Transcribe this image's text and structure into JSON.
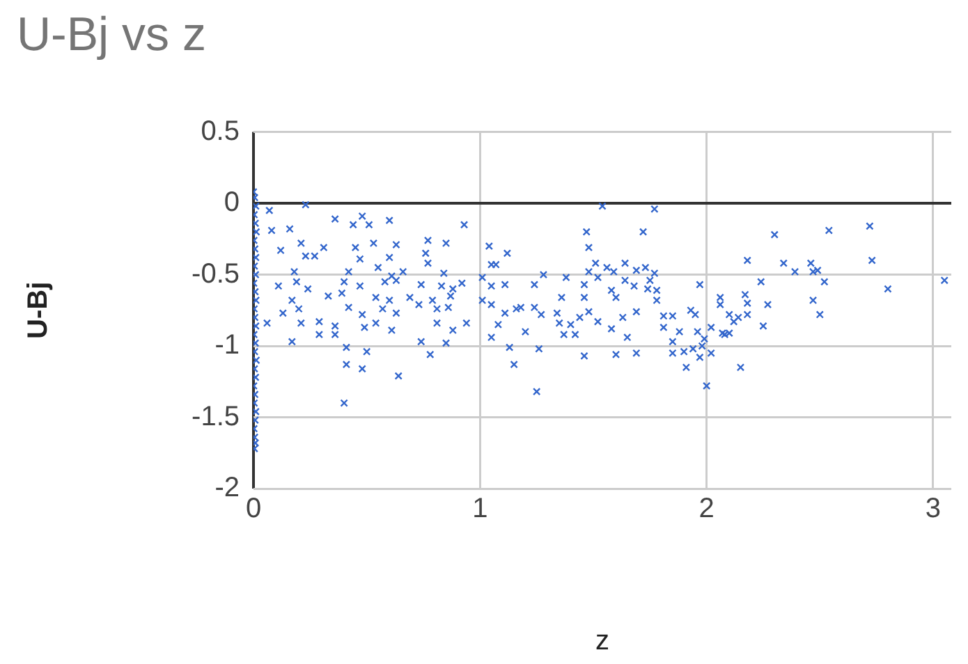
{
  "chart_data": {
    "type": "scatter",
    "title": "U-Bj vs z",
    "xlabel": "z",
    "ylabel": "U-Bj",
    "xlim": [
      0,
      3.08
    ],
    "xticks": [
      0,
      1,
      2,
      3
    ],
    "ylim": [
      -2,
      0.5
    ],
    "yticks": [
      0.5,
      0,
      -0.5,
      -1,
      -1.5,
      -2
    ],
    "grid": true,
    "marker": "cross",
    "series": [
      {
        "color": "#3366cc",
        "x": [
          0,
          0.005,
          0.01,
          0.003,
          0.008,
          0.012,
          0.002,
          0.006,
          0.01,
          0.004,
          0.009,
          0.001,
          0.007,
          0.011,
          0.003,
          0.006,
          0.01,
          0.002,
          0.008,
          0.005,
          0.012,
          0.004,
          0.009,
          0.001,
          0.006,
          0.003,
          0.01,
          0.007,
          0.002,
          0.005,
          0.008,
          0.004,
          0.23,
          0.07,
          0.36,
          0.48,
          0.44,
          0.51,
          0.6,
          0.93,
          0.16,
          0.08,
          0.21,
          0.12,
          0.31,
          0.53,
          0.63,
          0.45,
          0.77,
          0.85,
          0.76,
          0.23,
          0.27,
          0.47,
          0.6,
          0.77,
          0.18,
          0.42,
          0.55,
          0.61,
          0.66,
          0.84,
          0.11,
          0.19,
          0.24,
          0.4,
          0.47,
          0.58,
          0.63,
          0.74,
          0.83,
          0.88,
          0.92,
          0.33,
          0.39,
          0.54,
          0.6,
          0.69,
          0.79,
          0.87,
          0.17,
          0.2,
          0.13,
          0.42,
          0.48,
          0.57,
          0.63,
          0.73,
          0.81,
          0.86,
          0.06,
          0.21,
          0.29,
          0.36,
          0.29,
          0.36,
          0.49,
          0.54,
          0.61,
          0.81,
          0.88,
          0.94,
          0.17,
          0.41,
          0.5,
          0.74,
          0.78,
          0.85,
          0.41,
          0.48,
          0.64,
          0.4,
          1.04,
          1.12,
          1.05,
          1.07,
          1.01,
          1.05,
          1.11,
          1.01,
          1.05,
          1.11,
          1.08,
          1.16,
          1.18,
          1.05,
          1.13,
          1.15,
          1.2,
          1.26,
          1.25,
          1.24,
          1.28,
          1.27,
          1.24,
          1.36,
          1.34,
          1.35,
          1.37,
          1.38,
          1.4,
          1.42,
          1.44,
          1.46,
          1.46,
          1.48,
          1.46,
          1.47,
          1.48,
          1.51,
          1.48,
          1.52,
          1.52,
          1.54,
          1.56,
          1.58,
          1.59,
          1.6,
          1.58,
          1.6,
          1.63,
          1.64,
          1.64,
          1.65,
          1.69,
          1.69,
          1.68,
          1.69,
          1.72,
          1.73,
          1.74,
          1.75,
          1.77,
          1.77,
          1.78,
          1.78,
          1.81,
          1.81,
          1.85,
          1.85,
          1.85,
          1.88,
          1.91,
          1.9,
          1.93,
          1.95,
          1.94,
          1.97,
          1.96,
          1.97,
          1.99,
          1.98,
          2.02,
          2.0,
          2.02,
          2.06,
          2.07,
          2.06,
          2.1,
          2.08,
          2.1,
          2.12,
          2.14,
          2.15,
          2.17,
          2.18,
          2.18,
          2.18,
          2.24,
          2.25,
          2.27,
          2.3,
          2.34,
          2.39,
          2.46,
          2.47,
          2.49,
          2.47,
          2.5,
          2.52,
          2.54,
          2.72,
          2.73,
          2.8,
          3.05
        ],
        "values": [
          0.08,
          0.04,
          -0.02,
          -0.08,
          -0.14,
          -0.2,
          -0.26,
          -0.32,
          -0.38,
          -0.44,
          -0.5,
          -0.56,
          -0.62,
          -0.68,
          -0.74,
          -0.8,
          -0.86,
          -0.92,
          -0.98,
          -1.04,
          -1.1,
          -1.16,
          -1.22,
          -1.28,
          -1.34,
          -1.4,
          -1.46,
          -1.52,
          -1.58,
          -1.64,
          -1.68,
          -1.72,
          -0.01,
          -0.05,
          -0.11,
          -0.09,
          -0.15,
          -0.15,
          -0.12,
          -0.15,
          -0.18,
          -0.19,
          -0.28,
          -0.33,
          -0.31,
          -0.28,
          -0.29,
          -0.31,
          -0.26,
          -0.28,
          -0.35,
          -0.37,
          -0.37,
          -0.39,
          -0.38,
          -0.42,
          -0.48,
          -0.48,
          -0.45,
          -0.51,
          -0.48,
          -0.49,
          -0.58,
          -0.55,
          -0.6,
          -0.55,
          -0.58,
          -0.55,
          -0.54,
          -0.57,
          -0.58,
          -0.6,
          -0.56,
          -0.65,
          -0.63,
          -0.66,
          -0.68,
          -0.66,
          -0.68,
          -0.65,
          -0.68,
          -0.74,
          -0.77,
          -0.73,
          -0.78,
          -0.74,
          -0.77,
          -0.71,
          -0.74,
          -0.73,
          -0.84,
          -0.84,
          -0.83,
          -0.86,
          -0.92,
          -0.92,
          -0.87,
          -0.84,
          -0.89,
          -0.84,
          -0.89,
          -0.84,
          -0.97,
          -1.01,
          -1.04,
          -0.97,
          -1.06,
          -0.98,
          -1.13,
          -1.16,
          -1.21,
          -1.4,
          -0.3,
          -0.35,
          -0.43,
          -0.43,
          -0.52,
          -0.58,
          -0.57,
          -0.68,
          -0.71,
          -0.77,
          -0.85,
          -0.74,
          -0.73,
          -0.94,
          -1.01,
          -1.13,
          -0.9,
          -1.02,
          -1.32,
          -0.57,
          -0.5,
          -0.78,
          -0.73,
          -0.66,
          -0.77,
          -0.84,
          -0.92,
          -0.52,
          -0.85,
          -0.92,
          -0.8,
          -0.57,
          -0.66,
          -0.76,
          -1.07,
          -0.2,
          -0.31,
          -0.42,
          -0.48,
          -0.52,
          -0.83,
          -0.02,
          -0.45,
          -0.61,
          -0.48,
          -0.66,
          -0.88,
          -1.06,
          -0.8,
          -0.42,
          -0.54,
          -0.94,
          -0.76,
          -0.47,
          -0.58,
          -1.05,
          -0.2,
          -0.45,
          -0.6,
          -0.54,
          -0.04,
          -0.49,
          -0.61,
          -0.68,
          -0.79,
          -0.87,
          -0.79,
          -0.97,
          -1.05,
          -0.9,
          -1.15,
          -1.04,
          -0.75,
          -0.78,
          -1.02,
          -0.57,
          -0.9,
          -1.08,
          -0.95,
          -1.0,
          -0.87,
          -1.28,
          -1.05,
          -0.66,
          -0.91,
          -0.71,
          -0.78,
          -0.92,
          -0.91,
          -0.83,
          -0.8,
          -1.15,
          -0.64,
          -0.7,
          -0.78,
          -0.4,
          -0.55,
          -0.86,
          -0.71,
          -0.22,
          -0.42,
          -0.48,
          -0.42,
          -0.48,
          -0.47,
          -0.68,
          -0.78,
          -0.55,
          -0.19,
          -0.16,
          -0.4,
          -0.6,
          -0.54
        ]
      }
    ]
  }
}
